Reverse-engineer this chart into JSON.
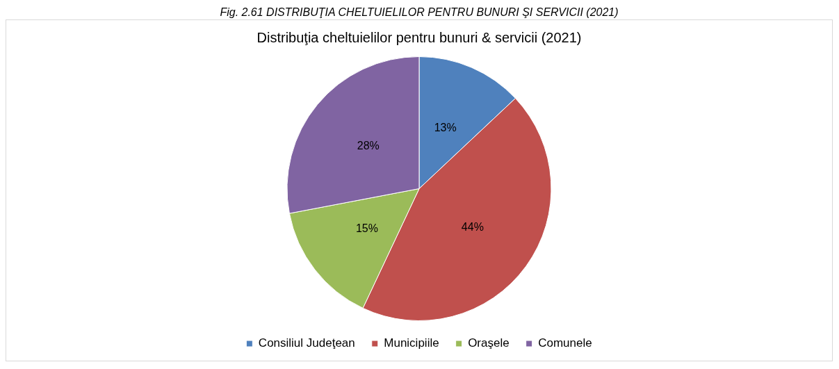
{
  "chart_data": {
    "type": "pie",
    "title": "Distribuţia cheltuielilor pentru bunuri & servicii (2021)",
    "annotations": [
      "Fig. 2.61 DISTRIBUŢIA CHELTUIELILOR PENTRU BUNURI ŞI SERVICII (2021)"
    ],
    "categories": [
      "Consiliul Judeţean",
      "Municipiile",
      "Oraşele",
      "Comunele"
    ],
    "values": [
      13,
      44,
      15,
      28
    ],
    "colors": [
      "#4f81bd",
      "#c0504d",
      "#9bbb59",
      "#8064a2"
    ],
    "value_labels": [
      "13%",
      "44%",
      "15%",
      "28%"
    ],
    "legend": "bottom"
  }
}
